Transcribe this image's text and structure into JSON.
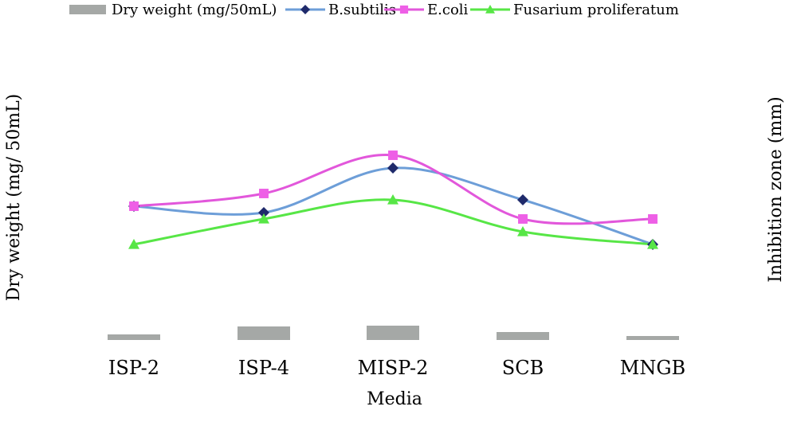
{
  "chart_data": {
    "type": "bar",
    "title": "",
    "xlabel": "Media",
    "ylabel": "Dry weight (mg/ 50mL)",
    "y2label": "Inhibition zone (mm)",
    "categories": [
      "ISP-2",
      "ISP-4",
      "MISP-2",
      "SCB",
      "MNGB"
    ],
    "legend_position": "top",
    "grid": false,
    "bars": {
      "name": "Dry weight (mg/50mL)",
      "type": "bar",
      "axis": "left",
      "values": [
        0.7,
        1.7,
        1.8,
        1.0,
        0.5
      ],
      "ylim": [
        0,
        40
      ],
      "color": "#a5a8a6"
    },
    "series": [
      {
        "name": "B.subtilis",
        "type": "line",
        "axis": "right",
        "values": [
          21,
          20,
          27,
          22,
          15
        ],
        "color": "#6d9ed8",
        "marker_color": "#1f2a6b",
        "marker": "diamond"
      },
      {
        "name": "E.coli",
        "type": "line",
        "axis": "right",
        "values": [
          21,
          23,
          29,
          19,
          19
        ],
        "color": "#e257db",
        "marker_color": "#ee5fe6",
        "marker": "square"
      },
      {
        "name": "Fusarium proliferatum",
        "type": "line",
        "axis": "right",
        "values": [
          15,
          19,
          22,
          17,
          15
        ],
        "color": "#57e646",
        "marker_color": "#57e646",
        "marker": "triangle"
      }
    ],
    "y2lim": [
      0,
      40
    ]
  }
}
